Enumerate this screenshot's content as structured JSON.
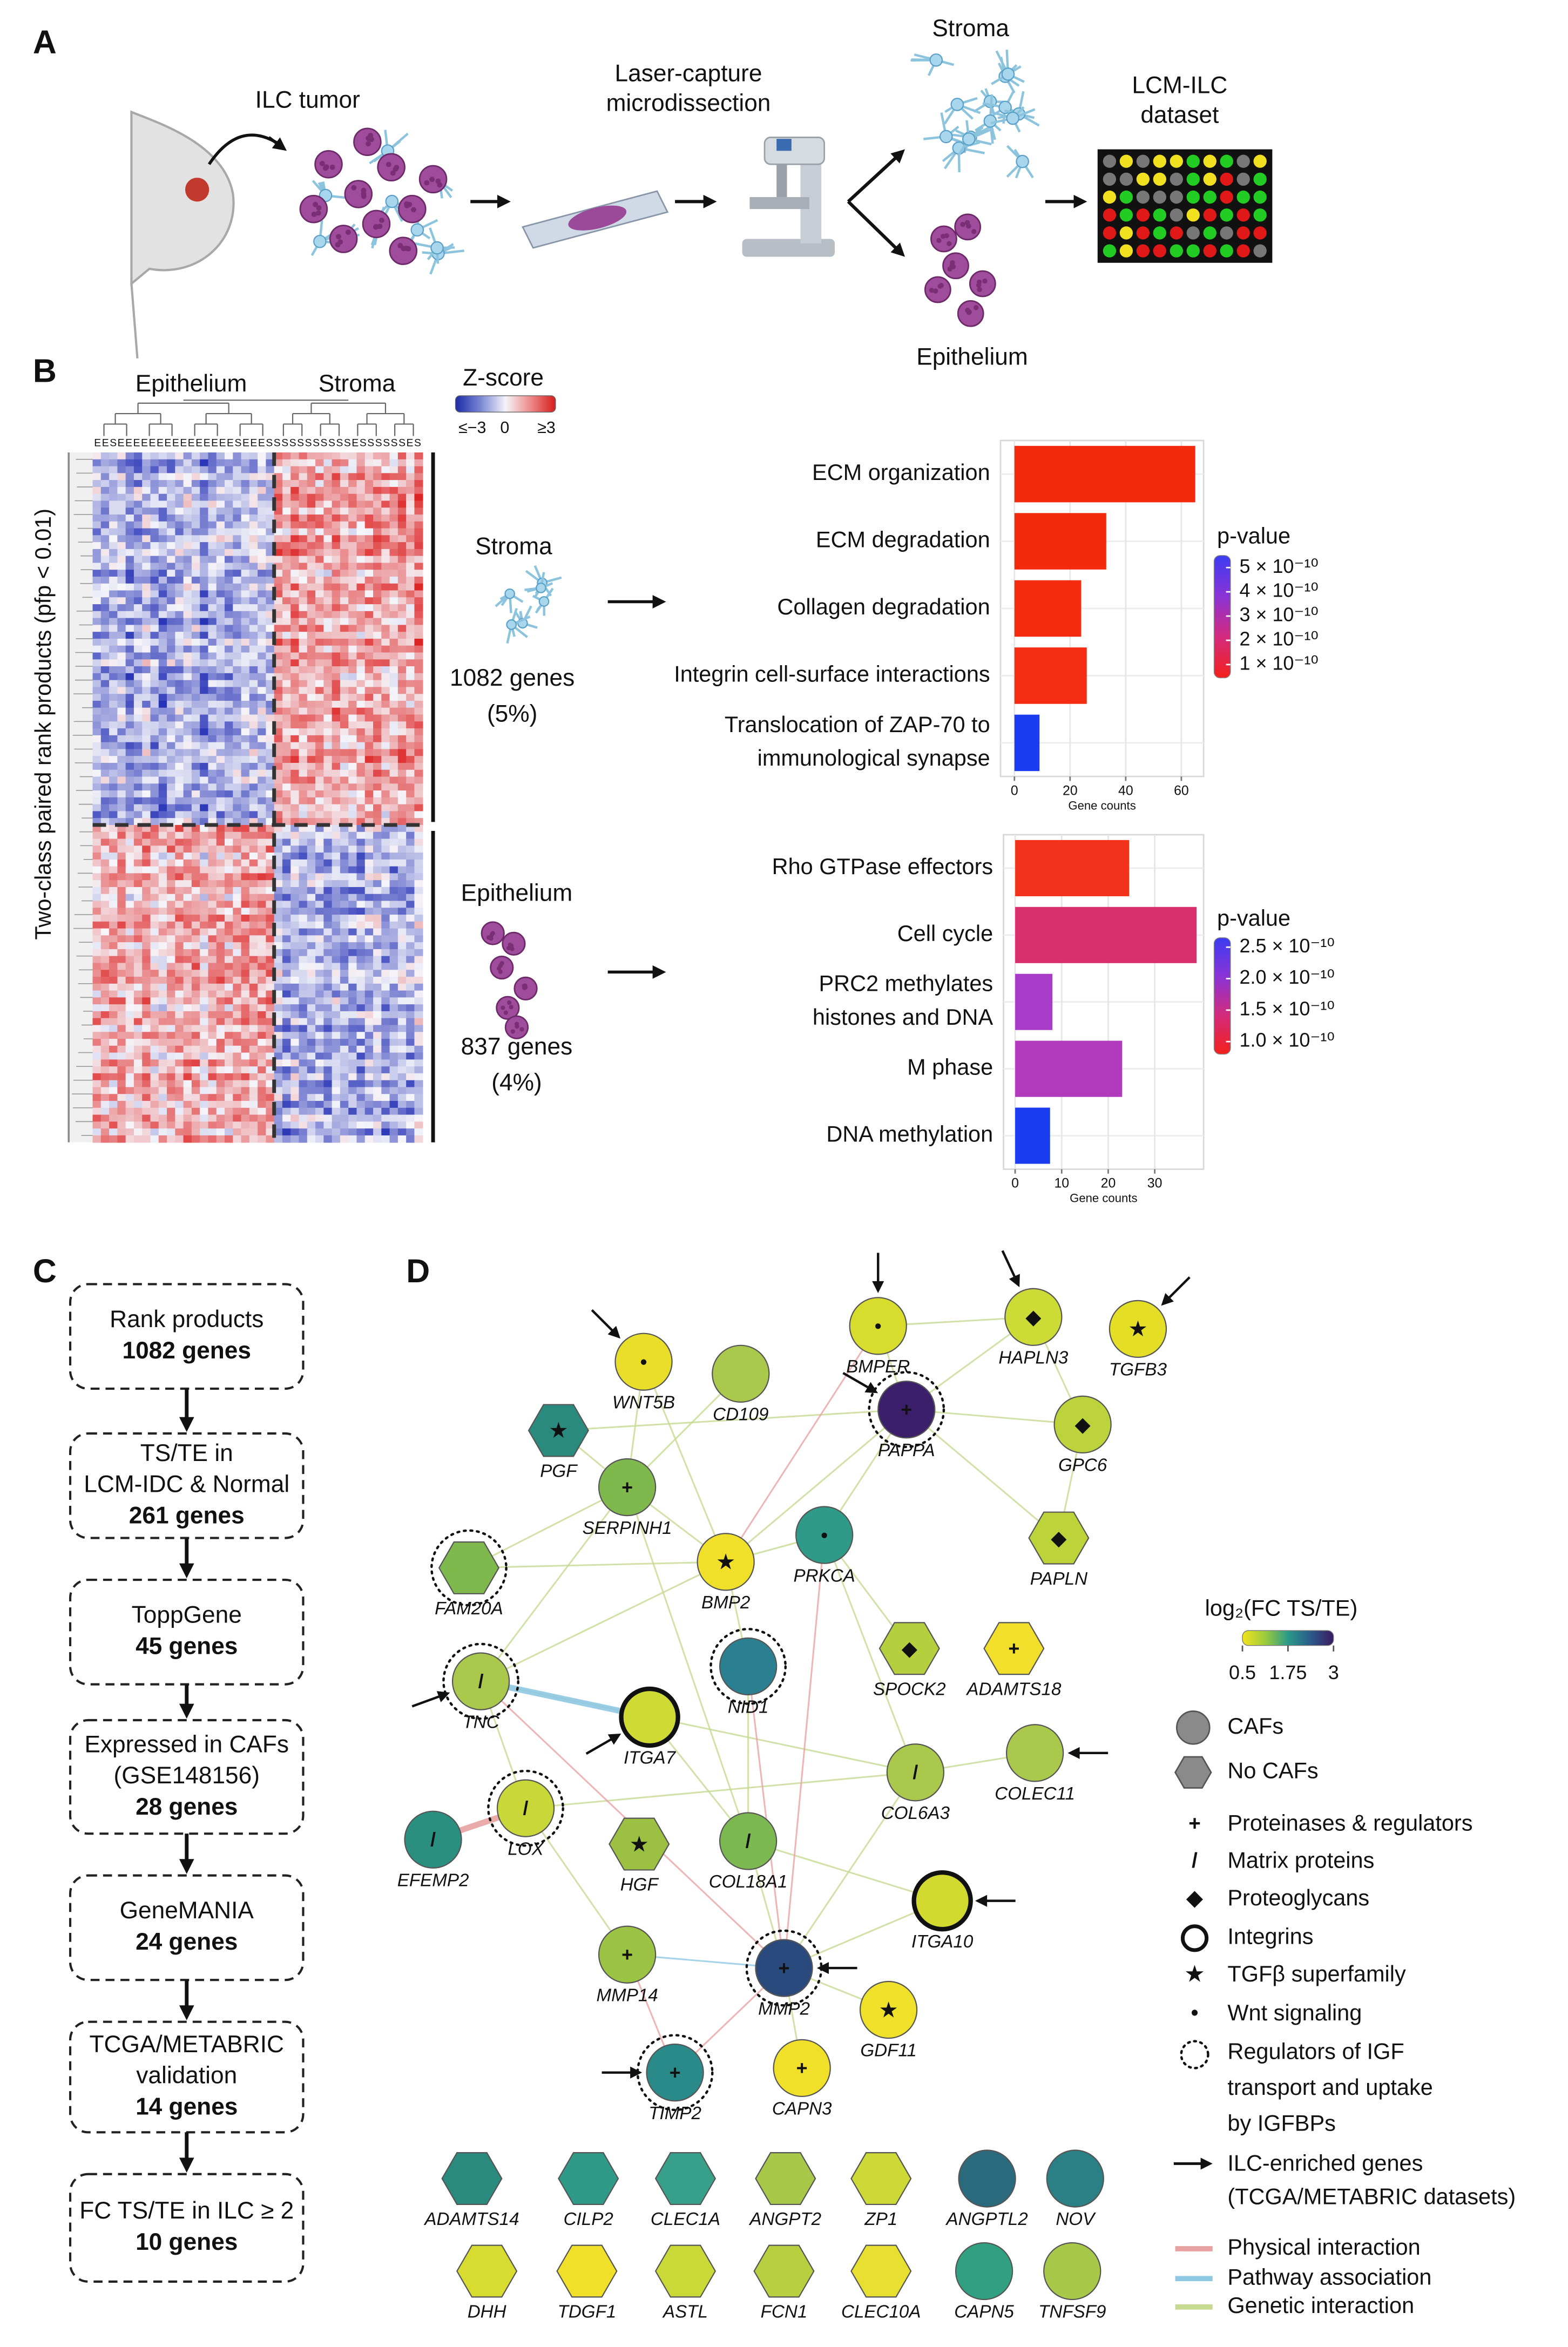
{
  "panel_labels": [
    "A",
    "B",
    "C",
    "D"
  ],
  "panel_a": {
    "tumor": "ILC tumor",
    "lcm": "Laser-capture\nmicrodissection",
    "stroma": "Stroma",
    "epithelium": "Epithelium",
    "dataset": "LCM-ILC\ndataset"
  },
  "panel_b": {
    "heatmap_groups": [
      "Epithelium",
      "Stroma"
    ],
    "column_labels": "EESEEEEEEEEEEEEEEESEEESSSSSSSSSSSESSSSSSES",
    "zscore": {
      "title": "Z-score",
      "ticks": [
        "≤−3",
        "0",
        "≥3"
      ]
    },
    "y_label": "Two-class paired rank products (pfp < 0.01)",
    "clusters": [
      {
        "name": "Stroma",
        "genes": "1082 genes",
        "percent": "(5%)"
      },
      {
        "name": "Epithelium",
        "genes": "837 genes",
        "percent": "(4%)"
      }
    ]
  },
  "chart_data": [
    {
      "type": "bar",
      "categories": [
        "ECM organization",
        "ECM degradation",
        "Collagen degradation",
        "Integrin cell-surface interactions",
        "Translocation of ZAP-70 to\nimmunological synapse"
      ],
      "values": [
        65,
        33,
        24,
        26,
        9
      ],
      "colors": [
        "#f5290b",
        "#f42a0c",
        "#f42b0e",
        "#f32c12",
        "#1b3cf0"
      ],
      "xlim": [
        -5,
        68
      ],
      "xticks": [
        0,
        20,
        40,
        60
      ],
      "x_label": "Gene counts",
      "grid": true,
      "colorbar": {
        "title": "p-value",
        "colors": [
          "#3b3cf2",
          "#8a33d6",
          "#d42a7c",
          "#f3201c"
        ],
        "clim": [
          4.5e-11,
          5.5e-10
        ],
        "ticks": [
          {
            "value": 5e-10,
            "label": "5 × 10⁻¹⁰"
          },
          {
            "value": 4e-10,
            "label": "4 × 10⁻¹⁰"
          },
          {
            "value": 3e-10,
            "label": "3 × 10⁻¹⁰"
          },
          {
            "value": 2e-10,
            "label": "2 × 10⁻¹⁰"
          },
          {
            "value": 1e-10,
            "label": "1 × 10⁻¹⁰"
          }
        ]
      }
    },
    {
      "type": "bar",
      "categories": [
        "Rho GTPase effectors",
        "Cell cycle",
        "PRC2 methylates\nhistones and DNA",
        "M phase",
        "DNA methylation"
      ],
      "values": [
        24.5,
        39,
        8,
        23,
        7.5
      ],
      "colors": [
        "#f2321a",
        "#d8306c",
        "#a83cc8",
        "#b23abc",
        "#1b3cf0"
      ],
      "xlim": [
        -2.5,
        40.5
      ],
      "xticks": [
        0,
        10,
        20,
        30
      ],
      "x_label": "Gene counts",
      "grid": true,
      "colorbar": {
        "title": "p-value",
        "colors": [
          "#3b3cf2",
          "#8a33d6",
          "#d42a7c",
          "#f3201c"
        ],
        "clim": [
          8e-11,
          2.65e-10
        ],
        "ticks": [
          {
            "value": 2.5e-10,
            "label": "2.5 × 10⁻¹⁰"
          },
          {
            "value": 2e-10,
            "label": "2.0 × 10⁻¹⁰"
          },
          {
            "value": 1.5e-10,
            "label": "1.5 × 10⁻¹⁰"
          },
          {
            "value": 1e-10,
            "label": "1.0 × 10⁻¹⁰"
          }
        ]
      }
    }
  ],
  "panel_c": {
    "steps": [
      {
        "label": "Rank products",
        "genes": "1082 genes"
      },
      {
        "label": "TS/TE in\nLCM-IDC & Normal",
        "genes": "261 genes"
      },
      {
        "label": "ToppGene",
        "genes": "45 genes"
      },
      {
        "label": "Expressed in CAFs\n(GSE148156)",
        "genes": "28 genes"
      },
      {
        "label": "GeneMANIA",
        "genes": "24 genes"
      },
      {
        "label": "TCGA/METABRIC\nvalidation",
        "genes": "14 genes"
      },
      {
        "label": "FC TS/TE in ILC ≥ 2",
        "genes": "10 genes"
      }
    ]
  },
  "panel_d": {
    "nodes": [
      {
        "label": "WNT5B",
        "shape": "circle",
        "color": "#e9df2a",
        "symbol": 5,
        "arrow": true
      },
      {
        "label": "CD109",
        "shape": "circle",
        "color": "#a9c84c"
      },
      {
        "label": "BMPER",
        "shape": "circle",
        "color": "#d8dc2c",
        "symbol": 5,
        "arrow": true
      },
      {
        "label": "HAPLN3",
        "shape": "circle",
        "color": "#cddb36",
        "symbol": 2,
        "arrow": true
      },
      {
        "label": "TGFB3",
        "shape": "circle",
        "color": "#e4df26",
        "symbol": 4,
        "arrow": true
      },
      {
        "label": "PGF",
        "shape": "hexagon",
        "color": "#2b8a7e",
        "symbol": 4
      },
      {
        "label": "PAPPA",
        "shape": "circle",
        "color": "#3b1f6b",
        "symbol": 0,
        "igf": true,
        "arrow": true
      },
      {
        "label": "GPC6",
        "shape": "circle",
        "color": "#bcd33c",
        "symbol": 2
      },
      {
        "label": "SERPINH1",
        "shape": "circle",
        "color": "#7fb84d",
        "symbol": 0
      },
      {
        "label": "FAM20A",
        "shape": "hexagon",
        "color": "#7fb84d",
        "igf": true
      },
      {
        "label": "BMP2",
        "shape": "circle",
        "color": "#f1e02a",
        "symbol": 4
      },
      {
        "label": "PRKCA",
        "shape": "circle",
        "color": "#2f9a87",
        "symbol": 5
      },
      {
        "label": "PAPLN",
        "shape": "hexagon",
        "color": "#bdd33a",
        "symbol": 2
      },
      {
        "label": "TNC",
        "shape": "circle",
        "color": "#a9c84c",
        "symbol": 1,
        "igf": true,
        "arrow": true
      },
      {
        "label": "NID1",
        "shape": "circle",
        "color": "#2a8090",
        "igf": true
      },
      {
        "label": "SPOCK2",
        "shape": "hexagon",
        "color": "#b5cf3e",
        "symbol": 2
      },
      {
        "label": "ADAMTS18",
        "shape": "hexagon",
        "color": "#f1df2c",
        "symbol": 0
      },
      {
        "label": "ITGA7",
        "shape": "circle",
        "color": "#cfdb34",
        "symbol": 3,
        "arrow": true
      },
      {
        "label": "COL6A3",
        "shape": "circle",
        "color": "#a9c84c",
        "symbol": 1
      },
      {
        "label": "COLEC11",
        "shape": "circle",
        "color": "#a9c84c",
        "arrow": true
      },
      {
        "label": "EFEMP2",
        "shape": "circle",
        "color": "#2b8f7f",
        "symbol": 1
      },
      {
        "label": "LOX",
        "shape": "circle",
        "color": "#c9d838",
        "symbol": 1,
        "igf": true
      },
      {
        "label": "HGF",
        "shape": "hexagon",
        "color": "#9cc142",
        "symbol": 4
      },
      {
        "label": "COL18A1",
        "shape": "circle",
        "color": "#7cb850",
        "symbol": 1
      },
      {
        "label": "ITGA10",
        "shape": "circle",
        "color": "#d2da30",
        "symbol": 3,
        "arrow": true
      },
      {
        "label": "MMP14",
        "shape": "circle",
        "color": "#9cc444",
        "symbol": 0
      },
      {
        "label": "MMP2",
        "shape": "circle",
        "color": "#2a4a7e",
        "symbol": 0,
        "igf": true,
        "arrow": true
      },
      {
        "label": "GDF11",
        "shape": "circle",
        "color": "#efe02a",
        "symbol": 4
      },
      {
        "label": "TIMP2",
        "shape": "circle",
        "color": "#2a8a8a",
        "symbol": 0,
        "igf": true,
        "arrow": true
      },
      {
        "label": "CAPN3",
        "shape": "circle",
        "color": "#f1e02a",
        "symbol": 0
      },
      {
        "label": "ADAMTS14",
        "shape": "hexagon",
        "color": "#2a8a7e"
      },
      {
        "label": "CILP2",
        "shape": "hexagon",
        "color": "#2f9a88"
      },
      {
        "label": "CLEC1A",
        "shape": "hexagon",
        "color": "#38a08a"
      },
      {
        "label": "ANGPT2",
        "shape": "hexagon",
        "color": "#a8c84a"
      },
      {
        "label": "ZP1",
        "shape": "hexagon",
        "color": "#cdd936"
      },
      {
        "label": "ANGPTL2",
        "shape": "circle",
        "color": "#2a6a7c"
      },
      {
        "label": "NOV",
        "shape": "circle",
        "color": "#2a8084"
      },
      {
        "label": "DHH",
        "shape": "hexagon",
        "color": "#d8dc30"
      },
      {
        "label": "TDGF1",
        "shape": "hexagon",
        "color": "#f0e02a"
      },
      {
        "label": "ASTL",
        "shape": "hexagon",
        "color": "#cad838"
      },
      {
        "label": "FCN1",
        "shape": "hexagon",
        "color": "#b8d040"
      },
      {
        "label": "CLEC10A",
        "shape": "hexagon",
        "color": "#e8e030"
      },
      {
        "label": "CAPN5",
        "shape": "circle",
        "color": "#30a080"
      },
      {
        "label": "TNFSF9",
        "shape": "circle",
        "color": "#a8c84a"
      }
    ],
    "edges": [
      [
        2,
        3,
        "genetic"
      ],
      [
        2,
        6,
        "genetic"
      ],
      [
        3,
        7,
        "genetic"
      ],
      [
        3,
        6,
        "genetic"
      ],
      [
        6,
        7,
        "genetic"
      ],
      [
        7,
        12,
        "genetic"
      ],
      [
        6,
        12,
        "genetic"
      ],
      [
        8,
        10,
        "genetic"
      ],
      [
        8,
        5,
        "genetic"
      ],
      [
        8,
        13,
        "genetic"
      ],
      [
        8,
        9,
        "genetic"
      ],
      [
        8,
        1,
        "genetic"
      ],
      [
        8,
        0,
        "genetic"
      ],
      [
        10,
        11,
        "genetic"
      ],
      [
        10,
        9,
        "genetic"
      ],
      [
        10,
        6,
        "genetic"
      ],
      [
        10,
        0,
        "genetic"
      ],
      [
        10,
        13,
        "genetic"
      ],
      [
        10,
        14,
        "genetic"
      ],
      [
        11,
        6,
        "genetic"
      ],
      [
        11,
        18,
        "genetic"
      ],
      [
        14,
        23,
        "genetic"
      ],
      [
        13,
        18,
        "genetic"
      ],
      [
        17,
        23,
        "genetic"
      ],
      [
        18,
        19,
        "genetic"
      ],
      [
        18,
        21,
        "genetic"
      ],
      [
        18,
        26,
        "genetic"
      ],
      [
        24,
        23,
        "genetic"
      ],
      [
        24,
        26,
        "genetic"
      ],
      [
        21,
        25,
        "genetic"
      ],
      [
        23,
        26,
        "genetic"
      ],
      [
        27,
        26,
        "genetic"
      ],
      [
        29,
        26,
        "genetic"
      ],
      [
        5,
        6,
        "genetic"
      ],
      [
        11,
        15,
        "genetic"
      ],
      [
        13,
        21,
        "genetic"
      ],
      [
        23,
        8,
        "genetic"
      ],
      [
        2,
        10,
        "physical"
      ],
      [
        20,
        21,
        "physical",
        true
      ],
      [
        25,
        28,
        "physical"
      ],
      [
        26,
        28,
        "physical"
      ],
      [
        11,
        26,
        "physical"
      ],
      [
        13,
        26,
        "physical"
      ],
      [
        14,
        26,
        "physical"
      ],
      [
        13,
        17,
        "pathway",
        true
      ],
      [
        25,
        26,
        "pathway"
      ]
    ],
    "legend": {
      "color_title": "log₂(FC TS/TE)",
      "color_ticks": [
        0.5,
        1.75,
        3
      ],
      "clim": [
        0.5,
        3
      ],
      "colors": [
        "#f2e41e",
        "#9ccc3c",
        "#2a9a88",
        "#2a5a8a",
        "#3a1a60"
      ],
      "shapes": [
        {
          "shape": "circle",
          "label": "CAFs"
        },
        {
          "shape": "hexagon",
          "label": "No CAFs"
        }
      ],
      "symbols": [
        {
          "glyph": "+",
          "label": "Proteinases & regulators"
        },
        {
          "glyph": "/",
          "label": "Matrix proteins"
        },
        {
          "glyph": "◆",
          "label": "Proteoglycans"
        },
        {
          "label": "Integrins"
        },
        {
          "glyph": "★",
          "label": "TGFβ superfamily"
        },
        {
          "glyph": "•",
          "label": "Wnt signaling"
        }
      ],
      "igf": "Regulators of IGF\ntransport and uptake\nby IGFBPs",
      "arrow": "ILC-enriched genes\n(TCGA/METABRIC datasets)",
      "edges": [
        {
          "type": "physical",
          "label": "Physical interaction",
          "color": "#e8a2a2"
        },
        {
          "type": "pathway",
          "label": "Pathway association",
          "color": "#8ec8e2"
        },
        {
          "type": "genetic",
          "label": "Genetic interaction",
          "color": "#c6da92"
        }
      ]
    }
  }
}
